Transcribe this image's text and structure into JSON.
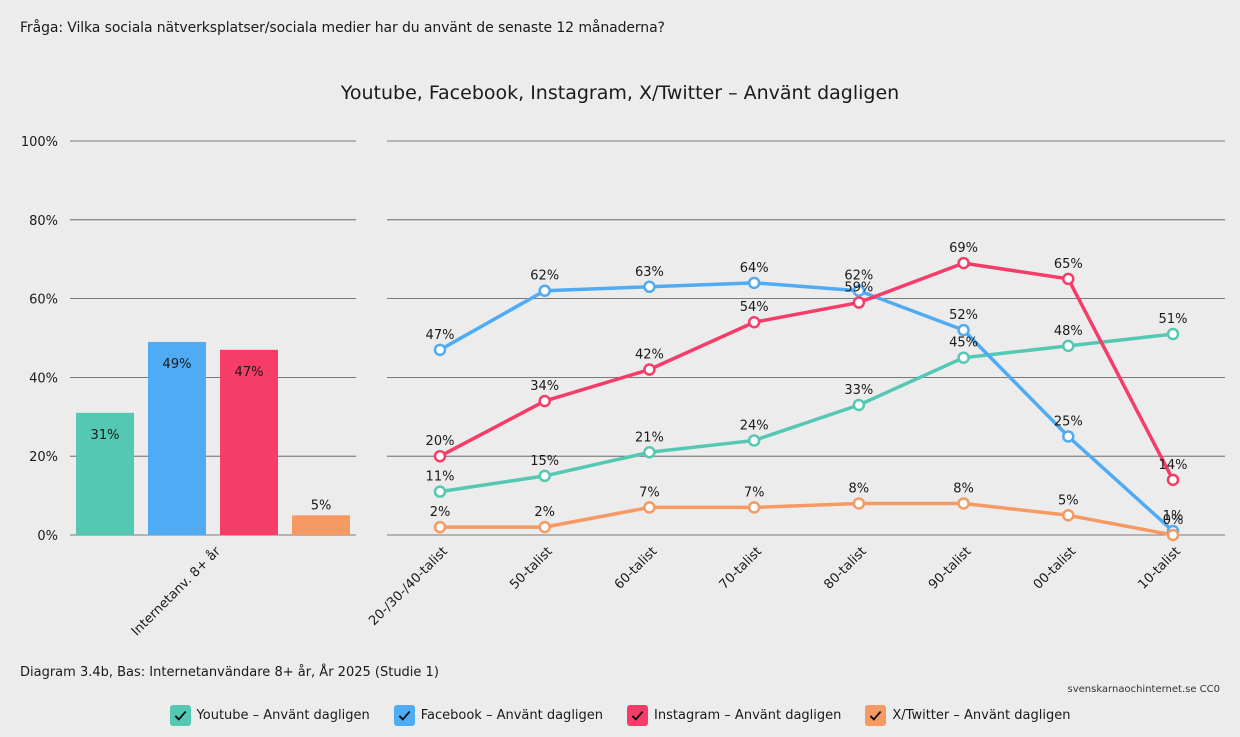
{
  "question": "Fråga: Vilka sociala nätverksplatser/sociala medier har du använt de senaste 12 månaderna?",
  "footnote": "Diagram 3.4b, Bas: Internetanvändare 8+ år, År 2025 (Studie 1)",
  "source": "svenskarnaochinternet.se CC0",
  "chart_data": [
    {
      "type": "bar",
      "title": "Youtube, Facebook, Instagram, X/Twitter – Använt dagligen",
      "categories": [
        "Internetanv. 8+ år"
      ],
      "ylim": [
        0,
        100
      ],
      "yticks": [
        "0%",
        "20%",
        "40%",
        "60%",
        "80%",
        "100%"
      ],
      "series": [
        {
          "name": "Youtube – Använt dagligen",
          "color": "#55c8b4",
          "values": [
            31
          ],
          "labels": [
            "31%"
          ]
        },
        {
          "name": "Facebook – Använt dagligen",
          "color": "#4fabf4",
          "values": [
            49
          ],
          "labels": [
            "49%"
          ]
        },
        {
          "name": "Instagram – Använt dagligen",
          "color": "#f53d68",
          "values": [
            47
          ],
          "labels": [
            "47%"
          ]
        },
        {
          "name": "X/Twitter – Använt dagligen",
          "color": "#f59a62",
          "values": [
            5
          ],
          "labels": [
            "5%"
          ]
        }
      ]
    },
    {
      "type": "line",
      "categories": [
        "20-/30-/40-talist",
        "50-talist",
        "60-talist",
        "70-talist",
        "80-talist",
        "90-talist",
        "00-talist",
        "10-talist"
      ],
      "ylim": [
        0,
        100
      ],
      "series": [
        {
          "name": "Youtube – Använt dagligen",
          "color": "#55c8b4",
          "values": [
            11,
            15,
            21,
            24,
            33,
            45,
            48,
            51
          ],
          "labels": [
            "11%",
            "15%",
            "21%",
            "24%",
            "33%",
            "45%",
            "48%",
            "51%"
          ]
        },
        {
          "name": "Facebook – Använt dagligen",
          "color": "#4fabf4",
          "values": [
            47,
            62,
            63,
            64,
            62,
            52,
            25,
            1
          ],
          "labels": [
            "47%",
            "62%",
            "63%",
            "64%",
            "62%",
            "52%",
            "25%",
            "1%"
          ]
        },
        {
          "name": "Instagram – Använt dagligen",
          "color": "#f53d68",
          "values": [
            20,
            34,
            42,
            54,
            59,
            69,
            65,
            14
          ],
          "labels": [
            "20%",
            "34%",
            "42%",
            "54%",
            "59%",
            "69%",
            "65%",
            "14%"
          ]
        },
        {
          "name": "X/Twitter – Använt dagligen",
          "color": "#f59a62",
          "values": [
            2,
            2,
            7,
            7,
            8,
            8,
            5,
            0
          ],
          "labels": [
            "2%",
            "2%",
            "7%",
            "7%",
            "8%",
            "8%",
            "5%",
            "0%"
          ]
        }
      ]
    }
  ],
  "legend": {
    "items": [
      {
        "label": "Youtube – Använt dagligen",
        "color": "#55c8b4"
      },
      {
        "label": "Facebook – Använt dagligen",
        "color": "#4fabf4"
      },
      {
        "label": "Instagram – Använt dagligen",
        "color": "#f53d68"
      },
      {
        "label": "X/Twitter – Använt dagligen",
        "color": "#f59a62"
      }
    ]
  }
}
